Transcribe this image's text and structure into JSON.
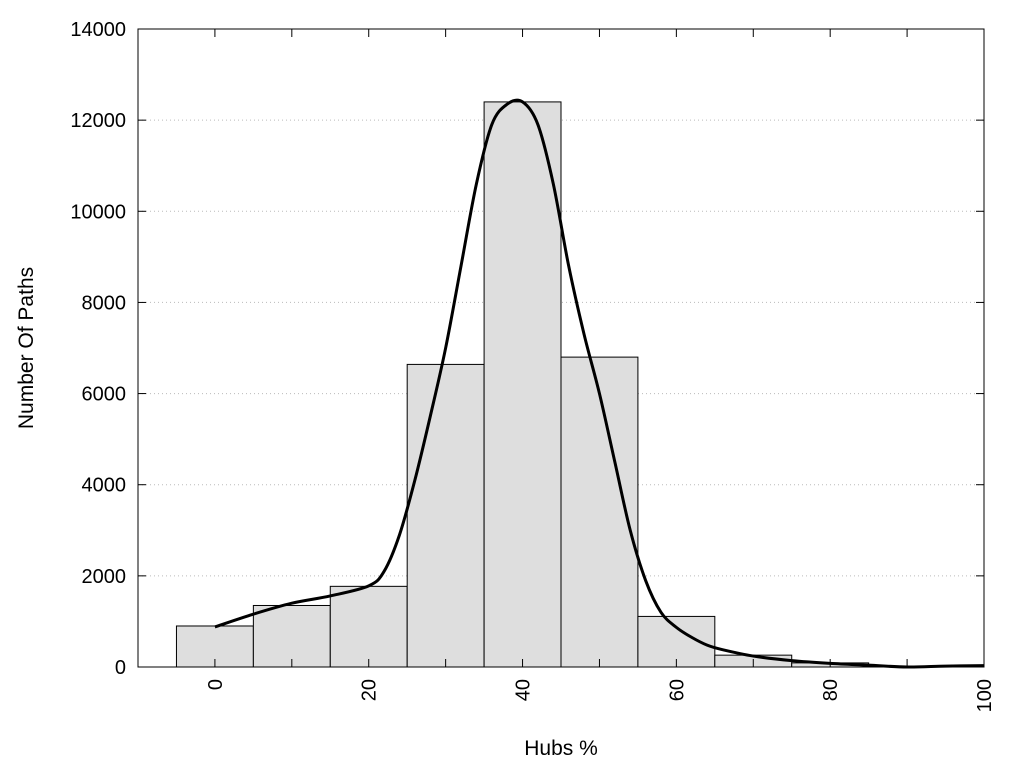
{
  "chart_data": {
    "type": "bar",
    "xlabel": "Hubs %",
    "ylabel": "Number Of Paths",
    "xlim": [
      -10,
      100
    ],
    "ylim": [
      0,
      14000
    ],
    "grid": "horizontal dotted",
    "x_ticks": [
      0,
      20,
      40,
      60,
      80,
      100
    ],
    "y_ticks": [
      0,
      2000,
      4000,
      6000,
      8000,
      10000,
      12000,
      14000
    ],
    "bar_width": 10,
    "bars": [
      {
        "x": 0,
        "value": 900
      },
      {
        "x": 10,
        "value": 1350
      },
      {
        "x": 20,
        "value": 1770
      },
      {
        "x": 30,
        "value": 6640
      },
      {
        "x": 40,
        "value": 12400
      },
      {
        "x": 50,
        "value": 6800
      },
      {
        "x": 60,
        "value": 1110
      },
      {
        "x": 70,
        "value": 260
      },
      {
        "x": 80,
        "value": 90
      },
      {
        "x": 90,
        "value": 10
      },
      {
        "x": 100,
        "value": 10
      }
    ],
    "curve": {
      "x": [
        0,
        5,
        10,
        15,
        20,
        22,
        24,
        26,
        28,
        30,
        32,
        34,
        36,
        38,
        40,
        42,
        44,
        46,
        48,
        50,
        52,
        54,
        56,
        58,
        60,
        62,
        64,
        66,
        70,
        75,
        80,
        85,
        90,
        95,
        100
      ],
      "y": [
        880,
        1160,
        1400,
        1560,
        1780,
        2100,
        2900,
        4100,
        5500,
        7000,
        8800,
        10600,
        11900,
        12350,
        12400,
        11900,
        10600,
        8800,
        7300,
        6000,
        4500,
        3000,
        1900,
        1200,
        870,
        650,
        480,
        380,
        240,
        140,
        80,
        40,
        0,
        20,
        30
      ],
      "color": "#000000"
    },
    "bar_fill": "#dedede",
    "bar_stroke": "#000000",
    "grid_color": "#bbbbbb"
  }
}
